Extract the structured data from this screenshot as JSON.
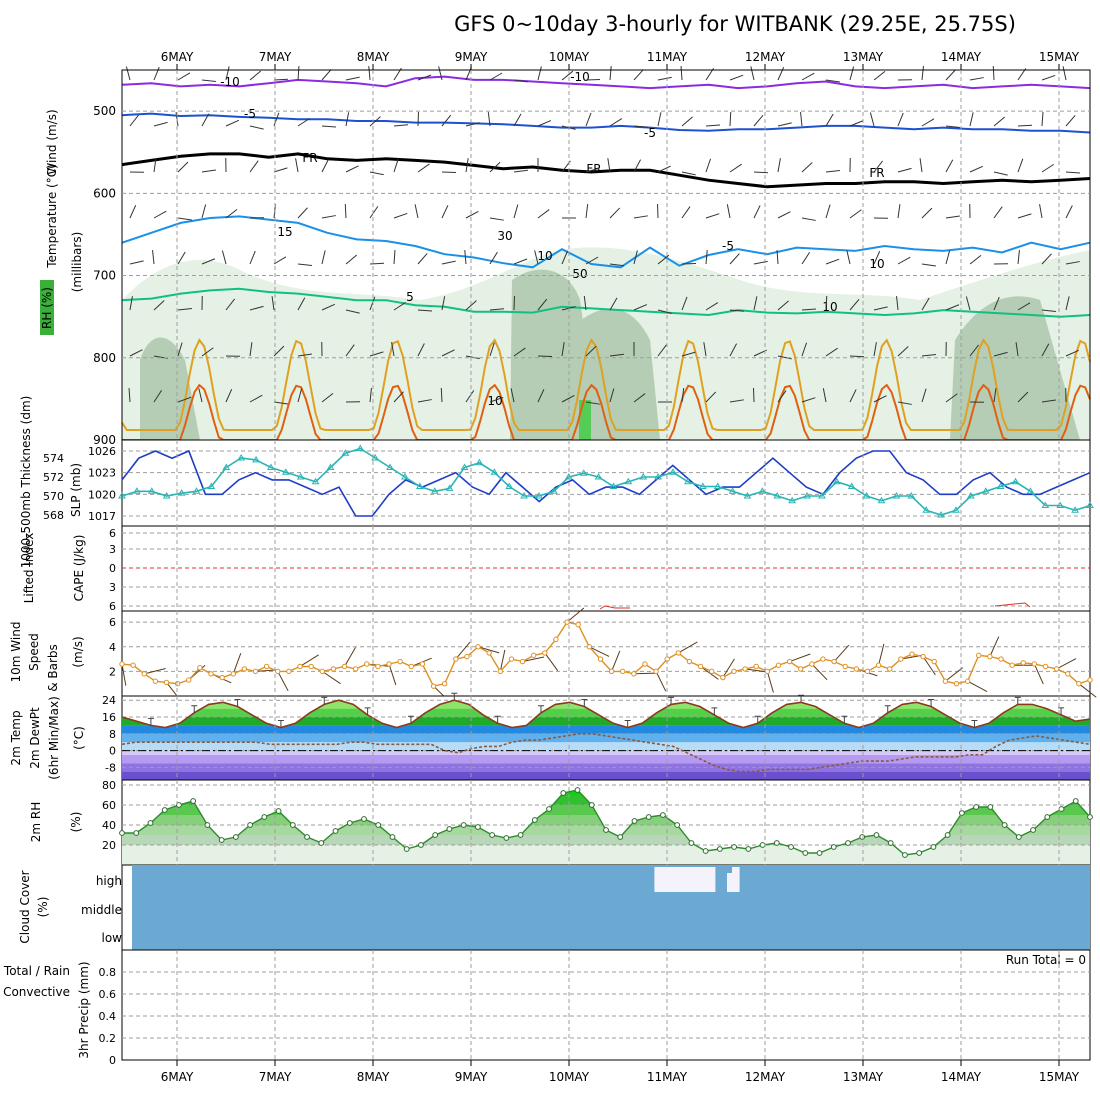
{
  "title": "GFS 0~10day 3-hourly for WITBANK (29.25E, 25.75S)",
  "days": [
    "6MAY",
    "7MAY",
    "8MAY",
    "9MAY",
    "10MAY",
    "11MAY",
    "12MAY",
    "13MAY",
    "14MAY",
    "15MAY"
  ],
  "run_total": "Run Total = 0",
  "chart_data": [
    {
      "type": "area",
      "panel": "upper-air",
      "ylabels": [
        {
          "text": "Wind (m/s)",
          "color": "#000000"
        },
        {
          "text": "Temperature (°C)",
          "color": "#d06040"
        },
        {
          "text": "RH (%)",
          "color": "#2e8b2e"
        },
        {
          "text": "(millibars)",
          "color": "#000000"
        }
      ],
      "y_axis": "millibars",
      "ylim": [
        900,
        450
      ],
      "yticks": [
        500,
        600,
        700,
        800,
        900
      ],
      "contour_labels": [
        "-10",
        "-10",
        "-5",
        "-5",
        "FR",
        "FR",
        "FR",
        "-5",
        "5",
        "10",
        "10",
        "15",
        "10",
        "50",
        "30",
        "10"
      ],
      "isotherms": [
        {
          "label": "-10",
          "color": "#8a2be2",
          "values": [
            468,
            466,
            470,
            468,
            470,
            466,
            462,
            464,
            466,
            470,
            460,
            458,
            462,
            462,
            464,
            466,
            468,
            470,
            472,
            470,
            468,
            472,
            470,
            466,
            464,
            470,
            472,
            470,
            468,
            472,
            470,
            468,
            470,
            472
          ]
        },
        {
          "label": "-5",
          "color": "#1e50d2",
          "values": [
            505,
            503,
            506,
            505,
            507,
            508,
            510,
            510,
            512,
            512,
            514,
            514,
            515,
            516,
            518,
            520,
            520,
            518,
            520,
            523,
            524,
            522,
            522,
            520,
            518,
            518,
            520,
            522,
            520,
            522,
            522,
            524,
            524,
            526
          ]
        },
        {
          "label": "FR",
          "color": "#000000",
          "values": [
            565,
            560,
            555,
            552,
            552,
            556,
            552,
            558,
            560,
            558,
            560,
            562,
            566,
            570,
            568,
            572,
            574,
            572,
            572,
            578,
            584,
            588,
            592,
            590,
            588,
            588,
            586,
            586,
            588,
            586,
            584,
            586,
            584,
            582
          ]
        },
        {
          "label": "5",
          "color": "#1a90e8",
          "values": [
            660,
            648,
            636,
            630,
            628,
            632,
            636,
            648,
            656,
            658,
            664,
            674,
            678,
            685,
            690,
            668,
            686,
            690,
            666,
            688,
            675,
            668,
            674,
            666,
            668,
            670,
            664,
            668,
            670,
            666,
            672,
            660,
            668,
            660
          ]
        },
        {
          "label": "10",
          "color": "#10c080",
          "values": [
            730,
            728,
            722,
            718,
            716,
            720,
            722,
            726,
            730,
            730,
            736,
            738,
            744,
            744,
            745,
            738,
            740,
            742,
            744,
            746,
            748,
            742,
            745,
            746,
            744,
            746,
            748,
            746,
            742,
            744,
            746,
            748,
            750,
            748
          ]
        }
      ]
    },
    {
      "type": "line",
      "panel": "thickness-slp",
      "ylabels": [
        {
          "text": "1000-500mb Thickness (dm)",
          "color": "#20b2aa"
        },
        {
          "text": "SLP (mb)",
          "color": "#1e3cc8"
        }
      ],
      "left_ticks": [
        "574",
        "572",
        "570",
        "568"
      ],
      "right_ticks": [
        "1026",
        "1023",
        "1020",
        "1017"
      ],
      "series": [
        {
          "name": "SLP (mb)",
          "color": "#1e3cc8",
          "values": [
            1022,
            1025,
            1026,
            1025,
            1026,
            1020,
            1020,
            1022,
            1023,
            1022,
            1022,
            1021,
            1020,
            1021,
            1017,
            1017,
            1020,
            1022,
            1021,
            1022,
            1023,
            1021,
            1020,
            1023,
            1021,
            1019,
            1021,
            1022,
            1020,
            1021,
            1021,
            1020,
            1022,
            1024,
            1022,
            1020,
            1021,
            1021,
            1023,
            1025,
            1023,
            1021,
            1020,
            1023,
            1025,
            1026,
            1026,
            1023,
            1022,
            1020,
            1020,
            1022,
            1023,
            1021,
            1020,
            1020,
            1021,
            1022,
            1023
          ]
        },
        {
          "name": "1000-500mb Thickness (dm)",
          "color": "#2ab5b5",
          "values": [
            570,
            570.5,
            570.5,
            570,
            570.3,
            570.5,
            571,
            573,
            574,
            573.8,
            573,
            572.5,
            572,
            571.5,
            573,
            574.5,
            575,
            574,
            573,
            572,
            571,
            570.5,
            570.8,
            573,
            573.5,
            572.5,
            571,
            570,
            570,
            570.5,
            572,
            572.4,
            572,
            571,
            571.5,
            572,
            572,
            572.5,
            571.5,
            571,
            571,
            570.5,
            570,
            570.5,
            570,
            569.5,
            570,
            570,
            571.5,
            571,
            570,
            569.5,
            570,
            570,
            568.5,
            568,
            568.5,
            570,
            570.5,
            571,
            571.5,
            570.5,
            569,
            569,
            568.5,
            569
          ]
        }
      ]
    },
    {
      "type": "line",
      "panel": "stability",
      "ylabels": [
        {
          "text": "Lifted Index",
          "color": "#e03030"
        },
        {
          "text": "CAPE (J/kg)",
          "color": "#c060c0"
        }
      ],
      "yticks": [
        "6",
        "3",
        "0",
        "3",
        "6"
      ],
      "series": [
        {
          "name": "Lifted Index",
          "color": "#e03030",
          "values": [
            0,
            0,
            0,
            0,
            0,
            0,
            0,
            0,
            0,
            0
          ]
        }
      ]
    },
    {
      "type": "line",
      "panel": "wind-10m",
      "ylabels": [
        {
          "text": "10m Wind",
          "color": "#e08020"
        },
        {
          "text": "Speed",
          "color": "#e08020"
        },
        {
          "text": "& Barbs",
          "color": "#000000"
        },
        {
          "text": "(m/s)",
          "color": "#000000"
        }
      ],
      "yticks": [
        6,
        4,
        2
      ],
      "ylim": [
        0,
        6.5
      ],
      "series": [
        {
          "name": "10m Wind Speed",
          "color": "#e09020",
          "values": [
            2.6,
            2.5,
            1.8,
            1.2,
            1.1,
            1.0,
            1.3,
            2.3,
            1.8,
            1.5,
            1.8,
            2.2,
            2.0,
            2.4,
            2.0,
            2.0,
            2.4,
            2.4,
            2.0,
            2.2,
            2.4,
            2.2,
            2.6,
            2.4,
            2.6,
            2.8,
            2.4,
            2.6,
            0.8,
            1.0,
            3.0,
            3.2,
            4.0,
            3.5,
            2.0,
            3.0,
            2.8,
            3.3,
            3.5,
            4.6,
            6.0,
            5.8,
            4.0,
            3.0,
            2.0,
            2.0,
            1.8,
            2.6,
            2.0,
            3.0,
            3.5,
            2.8,
            2.4,
            2.0,
            1.5,
            2.0,
            2.2,
            2.4,
            2.0,
            2.5,
            2.8,
            2.2,
            2.6,
            3.0,
            2.8,
            2.4,
            2.2,
            2.0,
            2.5,
            2.2,
            3.0,
            3.4,
            3.2,
            2.8,
            1.2,
            1.0,
            1.2,
            3.3,
            3.2,
            3.0,
            2.5,
            2.7,
            2.6,
            2.4,
            2.2,
            1.8,
            1.0,
            1.3
          ]
        }
      ]
    },
    {
      "type": "area",
      "panel": "temperature",
      "ylabels": [
        {
          "text": "2m Temp",
          "color": "#c04040"
        },
        {
          "text": "2m DewPt",
          "color": "#000000"
        },
        {
          "text": "(6hr Min/Max)",
          "color": "#000000"
        },
        {
          "text": "(°C)",
          "color": "#000000"
        }
      ],
      "yticks": [
        "24",
        "16",
        "8",
        "0",
        "-8"
      ],
      "ylim": [
        -14,
        26
      ],
      "series": [
        {
          "name": "2m Temp",
          "color": "#8b3a1e",
          "values": [
            16,
            14,
            12,
            11,
            13,
            18,
            22,
            23,
            21,
            17,
            13,
            11,
            13,
            18,
            22,
            24,
            22,
            17,
            13,
            11,
            13,
            18,
            22,
            24,
            22,
            17,
            13,
            11,
            12,
            18,
            22,
            23,
            21,
            17,
            13,
            11,
            13,
            18,
            22,
            23,
            21,
            17,
            13,
            11,
            13,
            18,
            22,
            23,
            21,
            17,
            13,
            11,
            13,
            18,
            22,
            23,
            21,
            17,
            13,
            11,
            13,
            18,
            22,
            22,
            20,
            17,
            14,
            15
          ]
        },
        {
          "name": "2m DewPt",
          "color": "#8b5a3c",
          "values": [
            3,
            4,
            4,
            4,
            4,
            4,
            4,
            4,
            4,
            4,
            4,
            3,
            3,
            3,
            3,
            3,
            3,
            4,
            4,
            3,
            3,
            3,
            3,
            3,
            0,
            -1,
            1,
            2,
            2,
            4,
            5,
            5,
            6,
            7,
            8,
            8,
            7,
            6,
            5,
            4,
            3,
            2,
            -1,
            -4,
            -7,
            -9,
            -10,
            -10,
            -9,
            -9,
            -9,
            -9,
            -8,
            -7,
            -6,
            -5,
            -5,
            -5,
            -4,
            -3,
            -3,
            -3,
            -3,
            -2,
            -2,
            2,
            5,
            6,
            7,
            6,
            5,
            4,
            3
          ]
        }
      ]
    },
    {
      "type": "area",
      "panel": "rh-2m",
      "ylabels": [
        {
          "text": "2m RH",
          "color": "#2e8b2e"
        },
        {
          "text": "(%)",
          "color": "#000000"
        }
      ],
      "yticks": [
        80,
        60,
        40,
        20
      ],
      "ylim": [
        0,
        85
      ],
      "series": [
        {
          "name": "2m RH",
          "color": "#2e8b2e",
          "values": [
            32,
            32,
            42,
            55,
            60,
            64,
            40,
            25,
            28,
            40,
            48,
            54,
            40,
            28,
            22,
            34,
            42,
            46,
            40,
            28,
            16,
            20,
            30,
            36,
            40,
            38,
            30,
            27,
            30,
            45,
            56,
            72,
            75,
            60,
            35,
            28,
            44,
            48,
            50,
            40,
            22,
            14,
            16,
            18,
            16,
            20,
            22,
            18,
            12,
            12,
            18,
            22,
            28,
            30,
            22,
            10,
            12,
            18,
            30,
            52,
            58,
            58,
            40,
            28,
            35,
            48,
            56,
            64,
            48
          ]
        }
      ]
    },
    {
      "type": "heatmap",
      "panel": "cloud-cover",
      "ylabels": [
        {
          "text": "Cloud Cover",
          "color": "#2e86c1"
        },
        {
          "text": "(%)",
          "color": "#000000"
        }
      ],
      "yticks": [
        "high",
        "middle",
        "low"
      ],
      "series": [
        {
          "name": "high",
          "values": [
            100,
            100,
            100,
            100,
            100,
            100,
            100,
            100,
            100,
            100,
            100,
            100,
            100,
            100,
            100,
            100,
            100,
            100,
            100,
            100,
            100,
            100,
            100,
            100,
            100,
            100,
            100,
            100,
            100,
            100,
            100,
            100,
            100,
            100,
            100,
            100,
            100,
            100,
            100,
            100,
            100,
            100,
            100,
            100,
            0,
            0,
            0,
            0,
            0,
            100,
            0,
            100,
            100,
            100,
            100,
            100,
            100,
            100,
            100,
            100,
            100,
            100,
            100,
            100,
            100,
            100,
            100,
            100,
            100,
            100,
            100,
            100,
            100,
            100,
            100,
            100,
            100,
            100,
            100,
            100
          ]
        },
        {
          "name": "middle",
          "values": [
            100,
            100,
            100,
            100,
            100,
            100,
            100,
            100,
            100,
            100
          ]
        },
        {
          "name": "low",
          "values": [
            100,
            100,
            100,
            100,
            100,
            100,
            100,
            100,
            100,
            100
          ]
        }
      ]
    },
    {
      "type": "bar",
      "panel": "precipitation",
      "ylabels": [
        {
          "text": "Total / Rain",
          "color": "#2e8b2e"
        },
        {
          "text": "Convective",
          "color": "#e03030"
        },
        {
          "text": "3hr Precip (mm)",
          "color": "#000000"
        }
      ],
      "yticks": [
        "0.8",
        "0.6",
        "0.4",
        "0.2",
        "0"
      ],
      "ylim": [
        0,
        1
      ],
      "values": [
        0,
        0,
        0,
        0,
        0,
        0,
        0,
        0,
        0,
        0
      ]
    }
  ]
}
